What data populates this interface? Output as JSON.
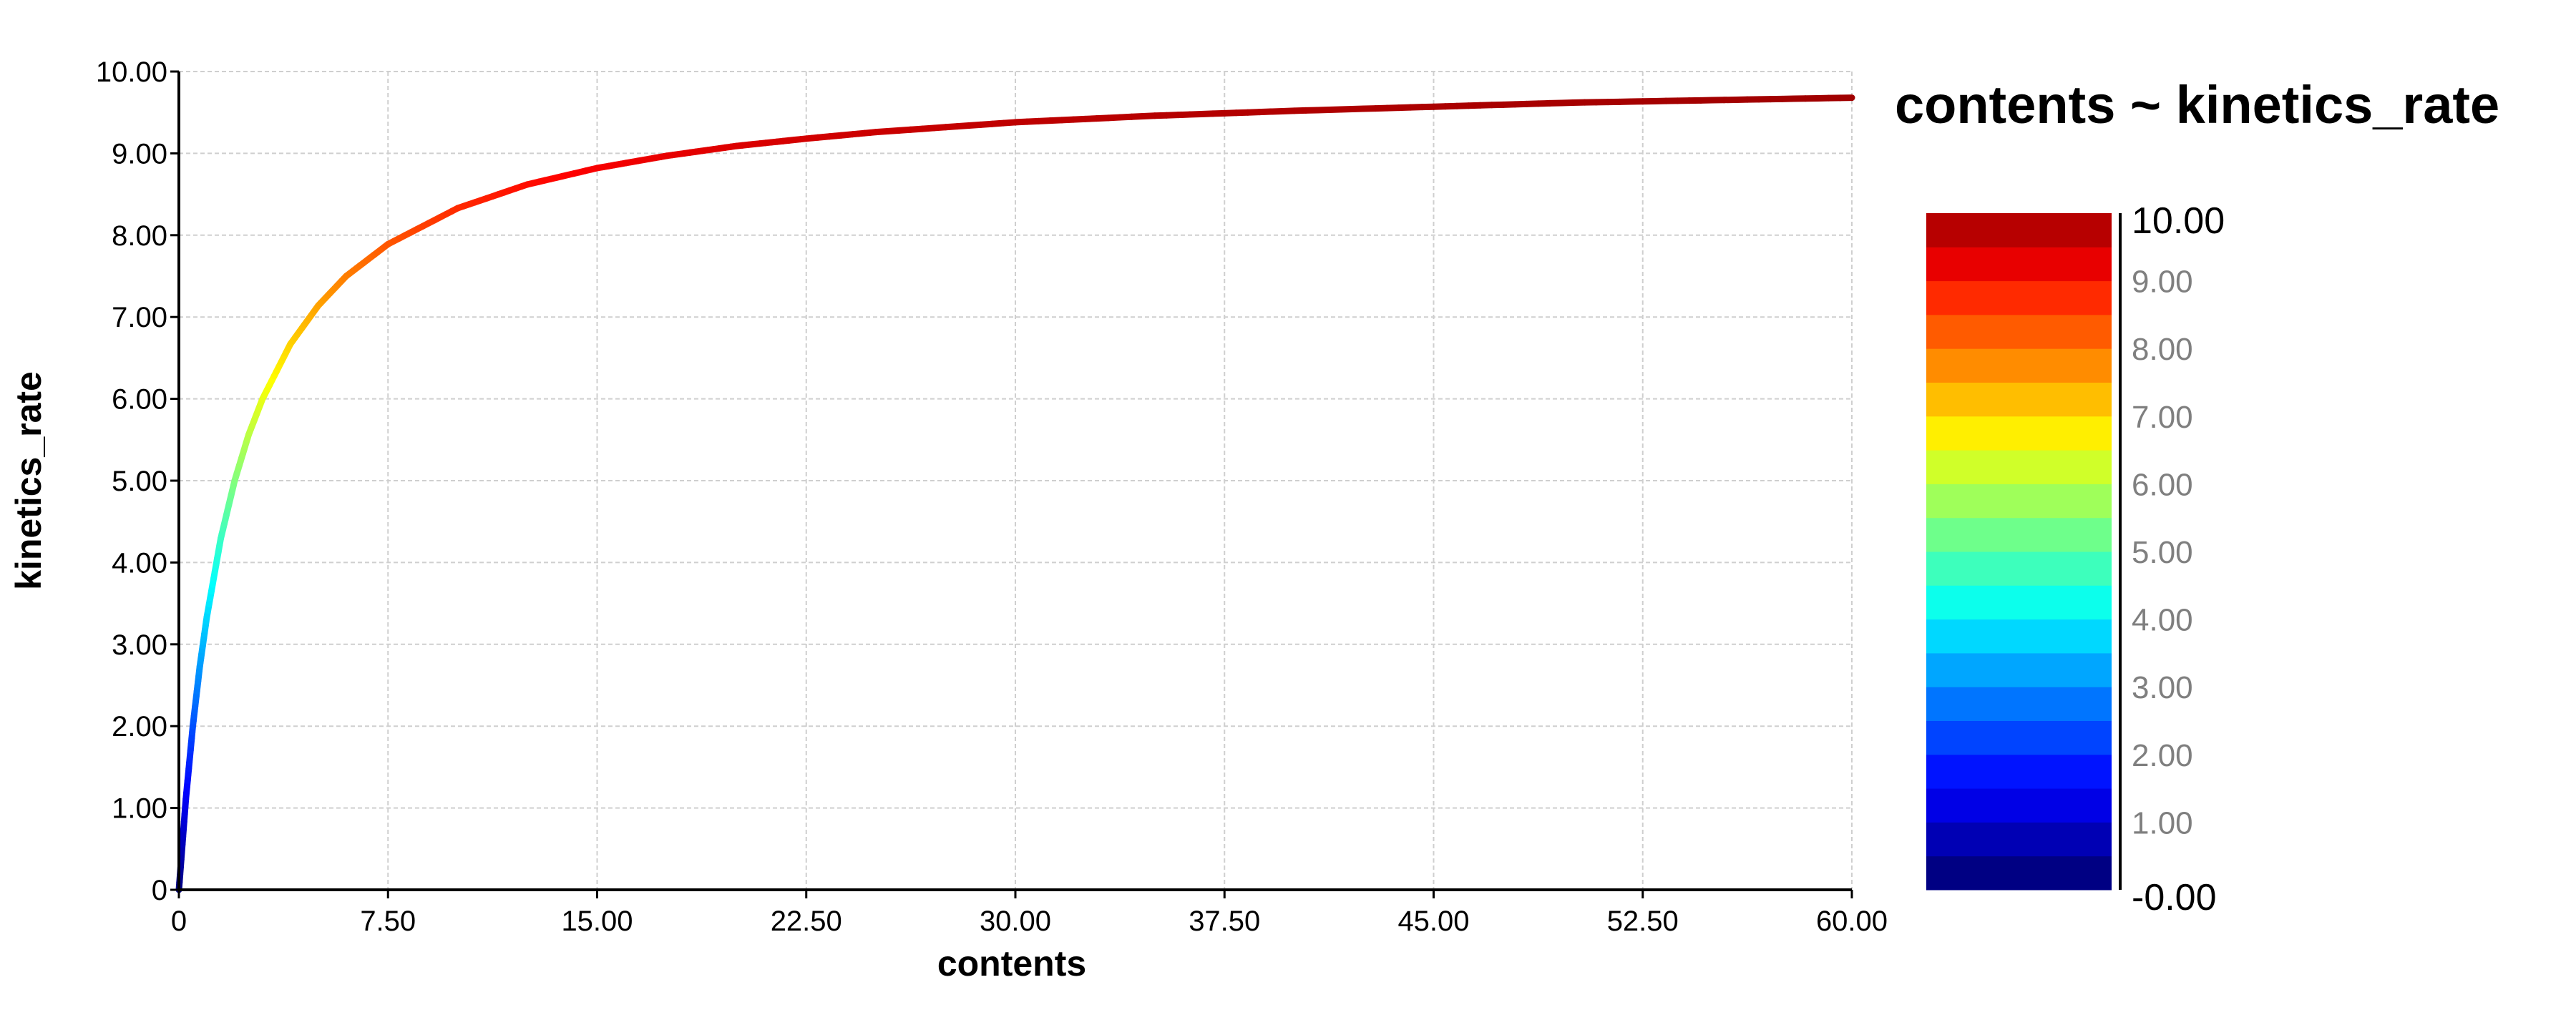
{
  "chart_data": {
    "type": "line",
    "title": "contents ~ kinetics_rate",
    "xlabel": "contents",
    "ylabel": "kinetics_rate",
    "xlim": [
      0,
      60
    ],
    "ylim": [
      0,
      10
    ],
    "x_ticks": [
      "0",
      "7.50",
      "15.00",
      "22.50",
      "30.00",
      "37.50",
      "45.00",
      "52.50",
      "60.00"
    ],
    "y_ticks": [
      "0",
      "1.00",
      "2.00",
      "3.00",
      "4.00",
      "5.00",
      "6.00",
      "7.00",
      "8.00",
      "9.00",
      "10.00"
    ],
    "grid": true,
    "series": [
      {
        "x": [
          0,
          0.25,
          0.5,
          0.75,
          1,
          1.5,
          2,
          2.5,
          3,
          4,
          5,
          6,
          7.5,
          10,
          12.5,
          15,
          17.5,
          20,
          22.5,
          25,
          30,
          35,
          40,
          45,
          50,
          55,
          60
        ],
        "y": [
          0,
          1.11,
          2.0,
          2.73,
          3.33,
          4.29,
          5.0,
          5.56,
          6.0,
          6.67,
          7.14,
          7.5,
          7.89,
          8.33,
          8.62,
          8.82,
          8.97,
          9.09,
          9.18,
          9.26,
          9.38,
          9.46,
          9.52,
          9.57,
          9.62,
          9.65,
          9.68
        ]
      }
    ],
    "colorbar": {
      "range": [
        0,
        10
      ],
      "labels": [
        "10.00",
        "9.00",
        "8.00",
        "7.00",
        "6.00",
        "5.00",
        "4.00",
        "3.00",
        "2.00",
        "1.00",
        "-0.00"
      ],
      "colormap": "jet",
      "colors": [
        "#000083",
        "#0000b4",
        "#0000e6",
        "#0013ff",
        "#0044ff",
        "#0075ff",
        "#00a6ff",
        "#00d8ff",
        "#0cffec",
        "#3dffbc",
        "#6eff8b",
        "#9fff5a",
        "#d0ff29",
        "#ffef00",
        "#ffbe00",
        "#ff8c00",
        "#ff5b00",
        "#ff2a00",
        "#e80000",
        "#b70000"
      ]
    }
  }
}
